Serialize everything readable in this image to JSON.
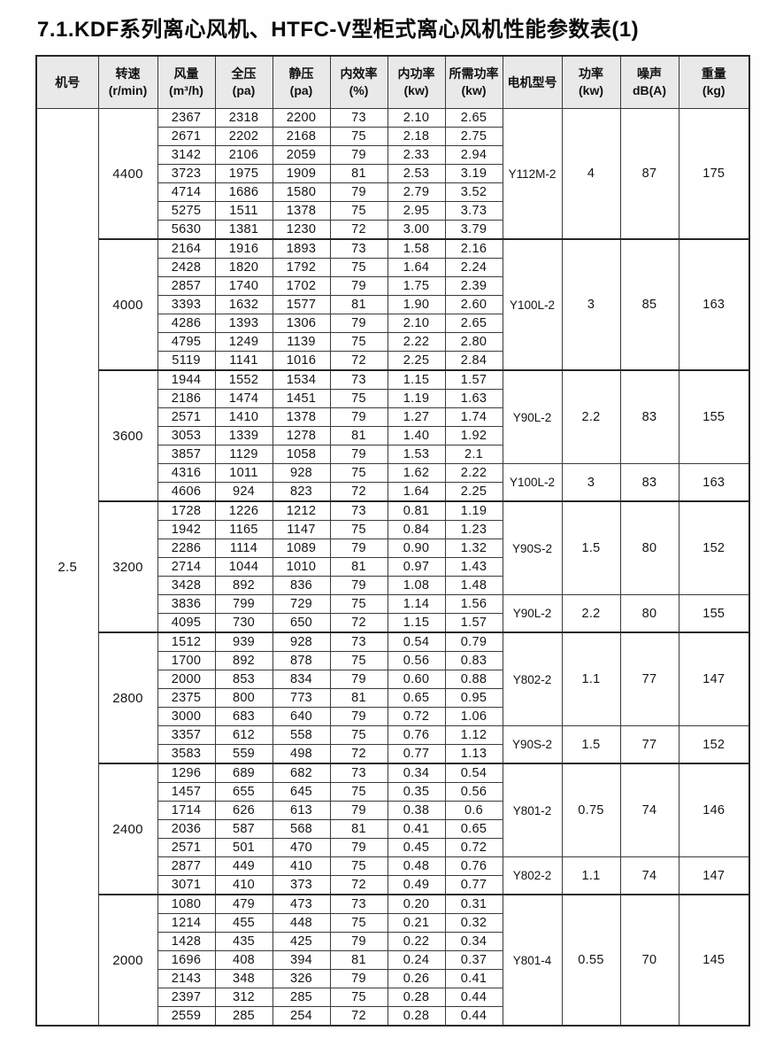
{
  "page_title": "7.1.KDF系列离心风机、HTFC-V型柜式离心风机性能参数表(1)",
  "colors": {
    "header_bg": "#e9e9e9",
    "border": "#3a3a3a",
    "outer_border": "#262626",
    "text": "#141414"
  },
  "table": {
    "machine_no": "2.5",
    "headers": [
      {
        "label": "机号",
        "unit": ""
      },
      {
        "label": "转速",
        "unit": "(r/min)"
      },
      {
        "label": "风量",
        "unit": "(m³/h)"
      },
      {
        "label": "全压",
        "unit": "(pa)"
      },
      {
        "label": "静压",
        "unit": "(pa)"
      },
      {
        "label": "内效率",
        "unit": "(%)"
      },
      {
        "label": "内功率",
        "unit": "(kw)"
      },
      {
        "label": "所需功率",
        "unit": "(kw)"
      },
      {
        "label": "电机型号",
        "unit": ""
      },
      {
        "label": "功率",
        "unit": "(kw)"
      },
      {
        "label": "噪声",
        "unit": "dB(A)"
      },
      {
        "label": "重量",
        "unit": "(kg)"
      }
    ],
    "data_column_names": [
      "airflow",
      "total-pressure",
      "static-pressure",
      "efficiency",
      "internal-power",
      "required-power"
    ],
    "groups": [
      {
        "speed": "4400",
        "rows": [
          [
            "2367",
            "2318",
            "2200",
            "73",
            "2.10",
            "2.65"
          ],
          [
            "2671",
            "2202",
            "2168",
            "75",
            "2.18",
            "2.75"
          ],
          [
            "3142",
            "2106",
            "2059",
            "79",
            "2.33",
            "2.94"
          ],
          [
            "3723",
            "1975",
            "1909",
            "81",
            "2.53",
            "3.19"
          ],
          [
            "4714",
            "1686",
            "1580",
            "79",
            "2.79",
            "3.52"
          ],
          [
            "5275",
            "1511",
            "1378",
            "75",
            "2.95",
            "3.73"
          ],
          [
            "5630",
            "1381",
            "1230",
            "72",
            "3.00",
            "3.79"
          ]
        ],
        "motors": [
          {
            "model": "Y112M-2",
            "power": "4",
            "noise": "87",
            "weight": "175",
            "span": 7
          }
        ]
      },
      {
        "speed": "4000",
        "rows": [
          [
            "2164",
            "1916",
            "1893",
            "73",
            "1.58",
            "2.16"
          ],
          [
            "2428",
            "1820",
            "1792",
            "75",
            "1.64",
            "2.24"
          ],
          [
            "2857",
            "1740",
            "1702",
            "79",
            "1.75",
            "2.39"
          ],
          [
            "3393",
            "1632",
            "1577",
            "81",
            "1.90",
            "2.60"
          ],
          [
            "4286",
            "1393",
            "1306",
            "79",
            "2.10",
            "2.65"
          ],
          [
            "4795",
            "1249",
            "1139",
            "75",
            "2.22",
            "2.80"
          ],
          [
            "5119",
            "1141",
            "1016",
            "72",
            "2.25",
            "2.84"
          ]
        ],
        "motors": [
          {
            "model": "Y100L-2",
            "power": "3",
            "noise": "85",
            "weight": "163",
            "span": 7
          }
        ]
      },
      {
        "speed": "3600",
        "rows": [
          [
            "1944",
            "1552",
            "1534",
            "73",
            "1.15",
            "1.57"
          ],
          [
            "2186",
            "1474",
            "1451",
            "75",
            "1.19",
            "1.63"
          ],
          [
            "2571",
            "1410",
            "1378",
            "79",
            "1.27",
            "1.74"
          ],
          [
            "3053",
            "1339",
            "1278",
            "81",
            "1.40",
            "1.92"
          ],
          [
            "3857",
            "1129",
            "1058",
            "79",
            "1.53",
            "2.1"
          ],
          [
            "4316",
            "1011",
            "928",
            "75",
            "1.62",
            "2.22"
          ],
          [
            "4606",
            "924",
            "823",
            "72",
            "1.64",
            "2.25"
          ]
        ],
        "motors": [
          {
            "model": "Y90L-2",
            "power": "2.2",
            "noise": "83",
            "weight": "155",
            "span": 5
          },
          {
            "model": "Y100L-2",
            "power": "3",
            "noise": "83",
            "weight": "163",
            "span": 2
          }
        ]
      },
      {
        "speed": "3200",
        "rows": [
          [
            "1728",
            "1226",
            "1212",
            "73",
            "0.81",
            "1.19"
          ],
          [
            "1942",
            "1165",
            "1147",
            "75",
            "0.84",
            "1.23"
          ],
          [
            "2286",
            "1114",
            "1089",
            "79",
            "0.90",
            "1.32"
          ],
          [
            "2714",
            "1044",
            "1010",
            "81",
            "0.97",
            "1.43"
          ],
          [
            "3428",
            "892",
            "836",
            "79",
            "1.08",
            "1.48"
          ],
          [
            "3836",
            "799",
            "729",
            "75",
            "1.14",
            "1.56"
          ],
          [
            "4095",
            "730",
            "650",
            "72",
            "1.15",
            "1.57"
          ]
        ],
        "motors": [
          {
            "model": "Y90S-2",
            "power": "1.5",
            "noise": "80",
            "weight": "152",
            "span": 5
          },
          {
            "model": "Y90L-2",
            "power": "2.2",
            "noise": "80",
            "weight": "155",
            "span": 2
          }
        ]
      },
      {
        "speed": "2800",
        "rows": [
          [
            "1512",
            "939",
            "928",
            "73",
            "0.54",
            "0.79"
          ],
          [
            "1700",
            "892",
            "878",
            "75",
            "0.56",
            "0.83"
          ],
          [
            "2000",
            "853",
            "834",
            "79",
            "0.60",
            "0.88"
          ],
          [
            "2375",
            "800",
            "773",
            "81",
            "0.65",
            "0.95"
          ],
          [
            "3000",
            "683",
            "640",
            "79",
            "0.72",
            "1.06"
          ],
          [
            "3357",
            "612",
            "558",
            "75",
            "0.76",
            "1.12"
          ],
          [
            "3583",
            "559",
            "498",
            "72",
            "0.77",
            "1.13"
          ]
        ],
        "motors": [
          {
            "model": "Y802-2",
            "power": "1.1",
            "noise": "77",
            "weight": "147",
            "span": 5
          },
          {
            "model": "Y90S-2",
            "power": "1.5",
            "noise": "77",
            "weight": "152",
            "span": 2
          }
        ]
      },
      {
        "speed": "2400",
        "rows": [
          [
            "1296",
            "689",
            "682",
            "73",
            "0.34",
            "0.54"
          ],
          [
            "1457",
            "655",
            "645",
            "75",
            "0.35",
            "0.56"
          ],
          [
            "1714",
            "626",
            "613",
            "79",
            "0.38",
            "0.6"
          ],
          [
            "2036",
            "587",
            "568",
            "81",
            "0.41",
            "0.65"
          ],
          [
            "2571",
            "501",
            "470",
            "79",
            "0.45",
            "0.72"
          ],
          [
            "2877",
            "449",
            "410",
            "75",
            "0.48",
            "0.76"
          ],
          [
            "3071",
            "410",
            "373",
            "72",
            "0.49",
            "0.77"
          ]
        ],
        "motors": [
          {
            "model": "Y801-2",
            "power": "0.75",
            "noise": "74",
            "weight": "146",
            "span": 5
          },
          {
            "model": "Y802-2",
            "power": "1.1",
            "noise": "74",
            "weight": "147",
            "span": 2
          }
        ]
      },
      {
        "speed": "2000",
        "rows": [
          [
            "1080",
            "479",
            "473",
            "73",
            "0.20",
            "0.31"
          ],
          [
            "1214",
            "455",
            "448",
            "75",
            "0.21",
            "0.32"
          ],
          [
            "1428",
            "435",
            "425",
            "79",
            "0.22",
            "0.34"
          ],
          [
            "1696",
            "408",
            "394",
            "81",
            "0.24",
            "0.37"
          ],
          [
            "2143",
            "348",
            "326",
            "79",
            "0.26",
            "0.41"
          ],
          [
            "2397",
            "312",
            "285",
            "75",
            "0.28",
            "0.44"
          ],
          [
            "2559",
            "285",
            "254",
            "72",
            "0.28",
            "0.44"
          ]
        ],
        "motors": [
          {
            "model": "Y801-4",
            "power": "0.55",
            "noise": "70",
            "weight": "145",
            "span": 7
          }
        ]
      }
    ]
  }
}
